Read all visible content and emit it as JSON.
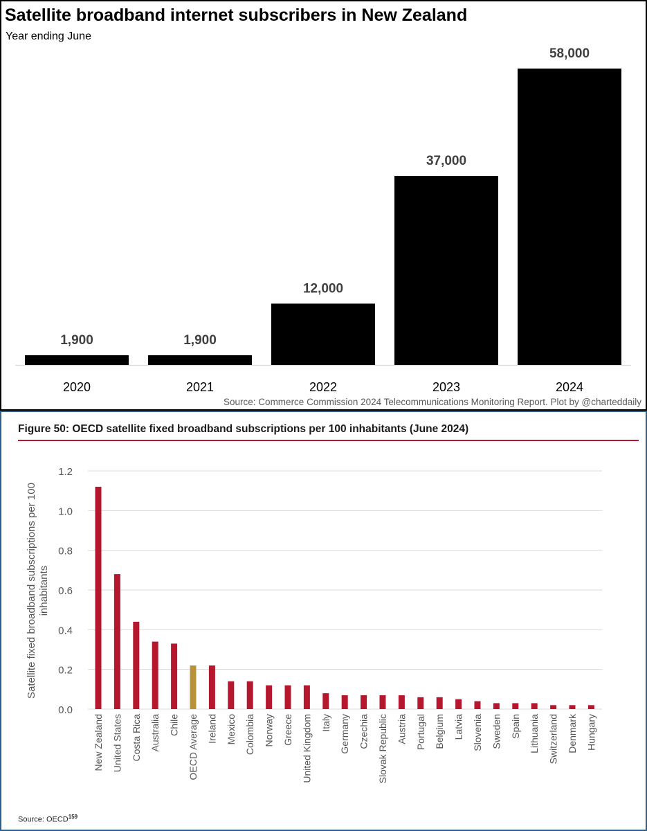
{
  "chart_data": [
    {
      "type": "bar",
      "title": "Satellite broadband internet subscribers in New Zealand",
      "subtitle": "Year ending June",
      "categories": [
        "2020",
        "2021",
        "2022",
        "2023",
        "2024"
      ],
      "values": [
        1900,
        1900,
        12000,
        37000,
        58000
      ],
      "data_labels": [
        "1,900",
        "1,900",
        "12,000",
        "37,000",
        "58,000"
      ],
      "xlabel": "",
      "ylabel": "",
      "ylim": [
        0,
        58000
      ],
      "grid": false,
      "colors": {
        "bar": "#000000",
        "label": "#404040",
        "axis": "#d9d9d9"
      },
      "source": "Source: Commerce Commission 2024 Telecommunications Monitoring Report.  Plot by @charteddaily"
    },
    {
      "type": "bar",
      "title": "Figure 50: OECD satellite fixed broadband subscriptions per 100 inhabitants (June 2024)",
      "categories": [
        "New Zealand",
        "United States",
        "Costa Rica",
        "Australia",
        "Chile",
        "OECD Average",
        "Ireland",
        "Mexico",
        "Colombia",
        "Norway",
        "Greece",
        "United Kingdom",
        "Italy",
        "Germany",
        "Czechia",
        "Slovak Republic",
        "Austria",
        "Portugal",
        "Belgium",
        "Latvia",
        "Slovenia",
        "Sweden",
        "Spain",
        "Lithuania",
        "Switzerland",
        "Denmark",
        "Hungary"
      ],
      "values": [
        1.12,
        0.68,
        0.44,
        0.34,
        0.33,
        0.22,
        0.22,
        0.14,
        0.14,
        0.12,
        0.12,
        0.12,
        0.08,
        0.07,
        0.07,
        0.07,
        0.07,
        0.06,
        0.06,
        0.05,
        0.04,
        0.03,
        0.03,
        0.03,
        0.02,
        0.02,
        0.02
      ],
      "highlight": "OECD Average",
      "xlabel": "",
      "ylabel": "Satellite fixed broadband subscriptions per 100 inhabitants",
      "ylim": [
        0,
        1.2
      ],
      "yticks": [
        "0.0",
        "0.2",
        "0.4",
        "0.6",
        "0.8",
        "1.0",
        "1.2"
      ],
      "grid": true,
      "colors": {
        "bar": "#b5172e",
        "highlight": "#b8913a",
        "grid": "#d9d9d9",
        "tick": "#555555",
        "rule": "#b5172e"
      },
      "source_text": "Source: OECD",
      "source_ref": "159"
    }
  ]
}
